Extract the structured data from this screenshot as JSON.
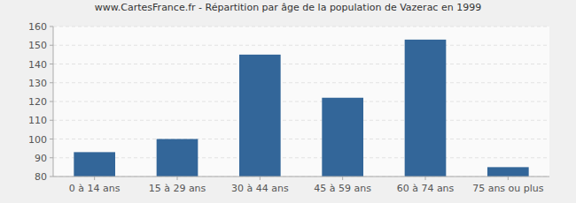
{
  "chart_data": {
    "type": "bar",
    "title": "www.CartesFrance.fr - Répartition par âge de la population de Vazerac en 1999",
    "categories": [
      "0 à 14 ans",
      "15 à 29 ans",
      "30 à 44 ans",
      "45 à 59 ans",
      "60 à 74 ans",
      "75 ans ou plus"
    ],
    "values": [
      93,
      100,
      145,
      122,
      153,
      85
    ],
    "color": "#336699",
    "ylim": [
      80,
      160
    ],
    "yticks": [
      80,
      90,
      100,
      110,
      120,
      130,
      140,
      150,
      160
    ],
    "grid": true
  }
}
